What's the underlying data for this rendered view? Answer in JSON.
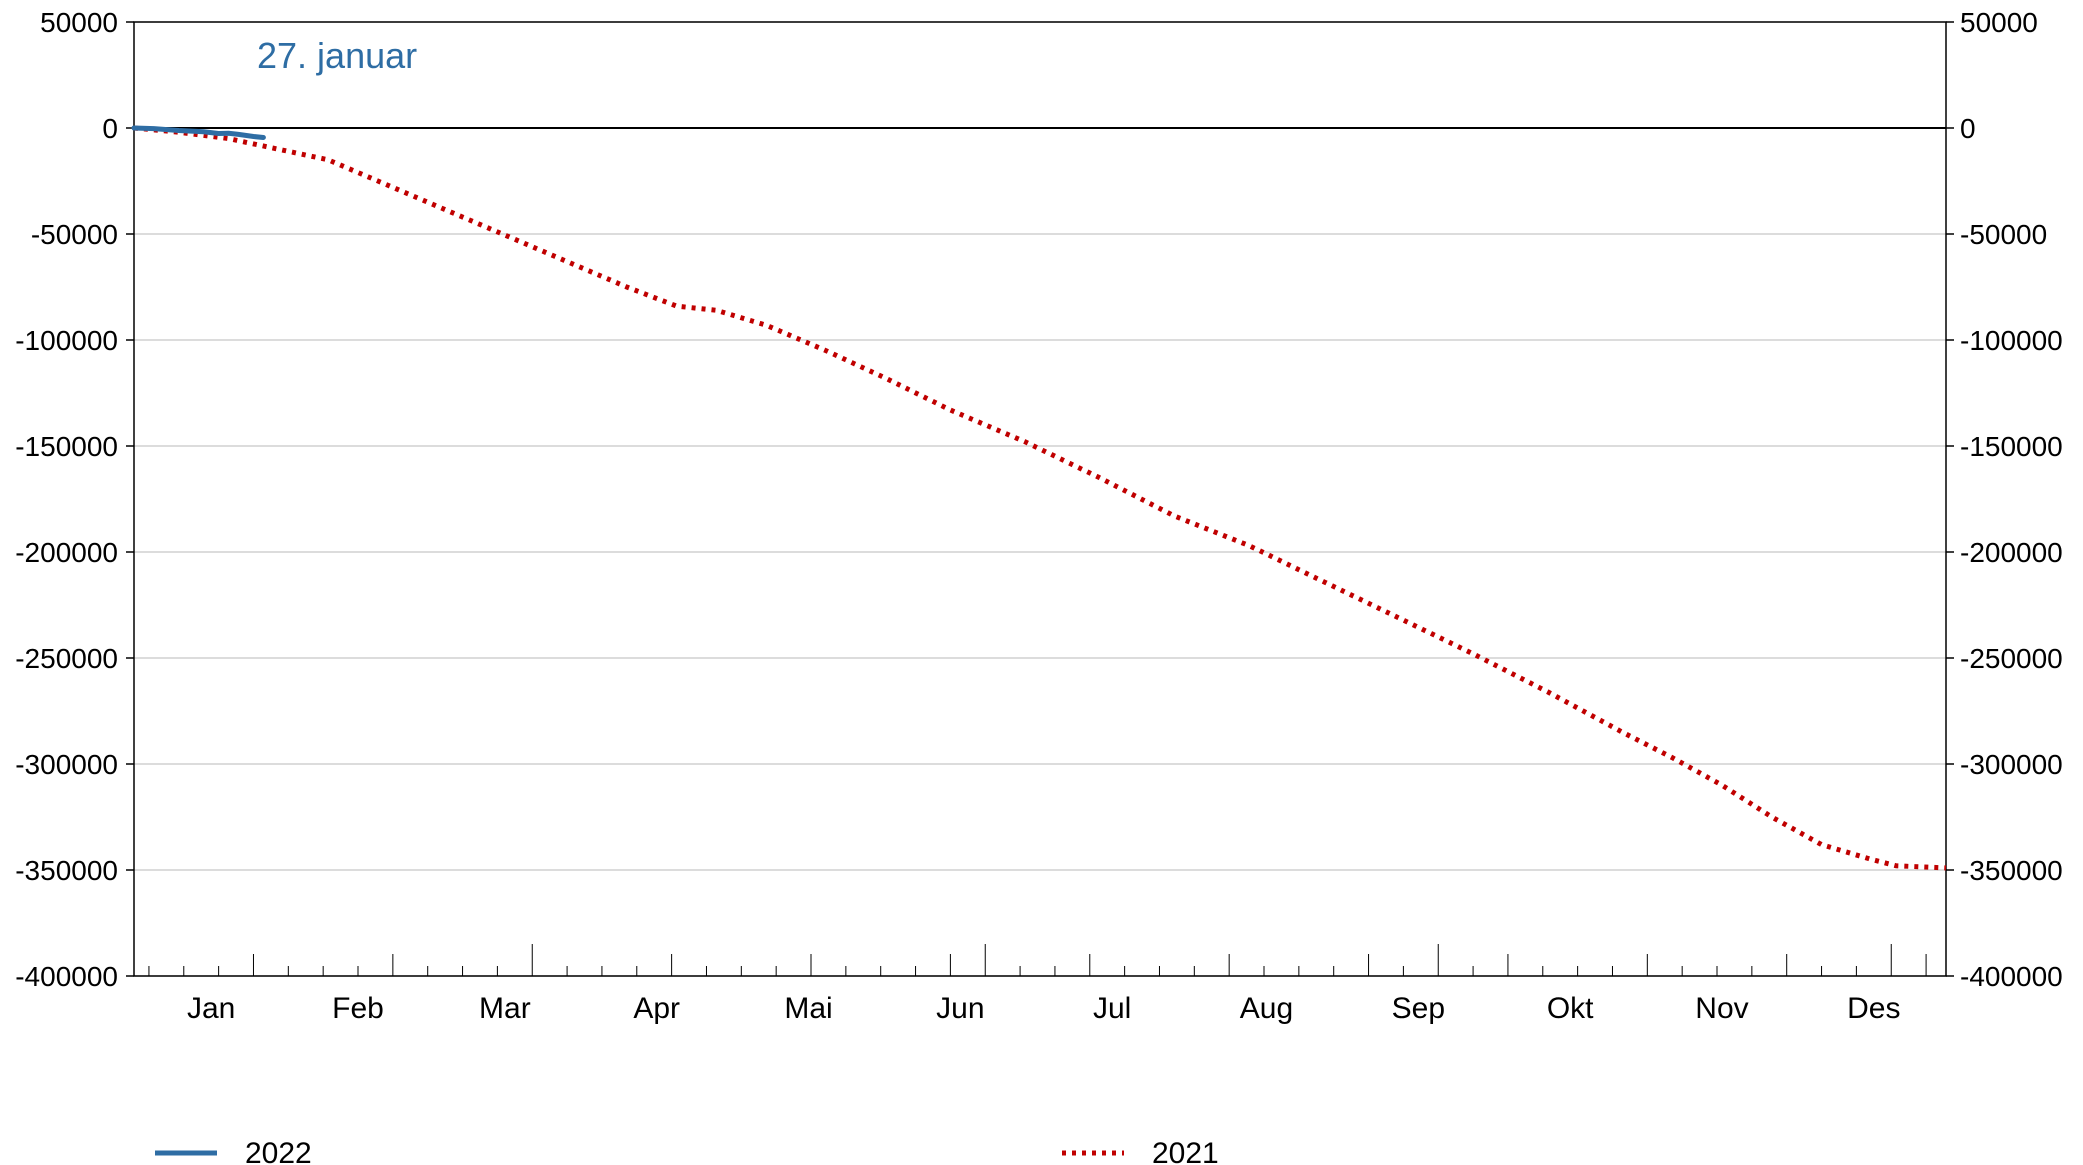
{
  "chart_data": {
    "type": "line",
    "annotation": "27. januar",
    "colors": {
      "series_2022": "#2e6da4",
      "series_2021": "#c00000",
      "annotation": "#2e6da4",
      "grid": "#c8c8c8"
    },
    "y_ticks": [
      50000,
      0,
      -50000,
      -100000,
      -150000,
      -200000,
      -250000,
      -300000,
      -350000,
      -400000
    ],
    "y_tick_labels": [
      "50000",
      "0",
      "-50000",
      "-100000",
      "-150000",
      "-200000",
      "-250000",
      "-300000",
      "-350000",
      "-400000"
    ],
    "ylim": [
      -400000,
      50000
    ],
    "xlim": [
      1,
      365
    ],
    "grid": "horizontal",
    "dual_y_axis": true,
    "legend_position": "bottom",
    "months": [
      "Jan",
      "Feb",
      "Mar",
      "Apr",
      "Mai",
      "Jun",
      "Jul",
      "Aug",
      "Sep",
      "Okt",
      "Nov",
      "Des"
    ],
    "series": [
      {
        "name": "2022",
        "style": "solid",
        "points": [
          [
            1,
            0
          ],
          [
            5,
            -300
          ],
          [
            10,
            -1200
          ],
          [
            15,
            -1800
          ],
          [
            18,
            -2600
          ],
          [
            20,
            -2500
          ],
          [
            22,
            -3000
          ],
          [
            25,
            -4000
          ],
          [
            27,
            -4500
          ]
        ]
      },
      {
        "name": "2021",
        "style": "dotted",
        "points": [
          [
            1,
            0
          ],
          [
            10,
            -2000
          ],
          [
            20,
            -5000
          ],
          [
            30,
            -10000
          ],
          [
            40,
            -15000
          ],
          [
            50,
            -25000
          ],
          [
            60,
            -35000
          ],
          [
            70,
            -45000
          ],
          [
            80,
            -55000
          ],
          [
            90,
            -65000
          ],
          [
            100,
            -75000
          ],
          [
            110,
            -84000
          ],
          [
            118,
            -86000
          ],
          [
            128,
            -93000
          ],
          [
            140,
            -105000
          ],
          [
            152,
            -118000
          ],
          [
            165,
            -133000
          ],
          [
            180,
            -148000
          ],
          [
            195,
            -165000
          ],
          [
            210,
            -183000
          ],
          [
            225,
            -197000
          ],
          [
            240,
            -214000
          ],
          [
            255,
            -231000
          ],
          [
            270,
            -248000
          ],
          [
            285,
            -266000
          ],
          [
            300,
            -285000
          ],
          [
            310,
            -297000
          ],
          [
            320,
            -310000
          ],
          [
            330,
            -325000
          ],
          [
            340,
            -338000
          ],
          [
            350,
            -345000
          ],
          [
            355,
            -348000
          ],
          [
            365,
            -349000
          ]
        ]
      }
    ]
  }
}
